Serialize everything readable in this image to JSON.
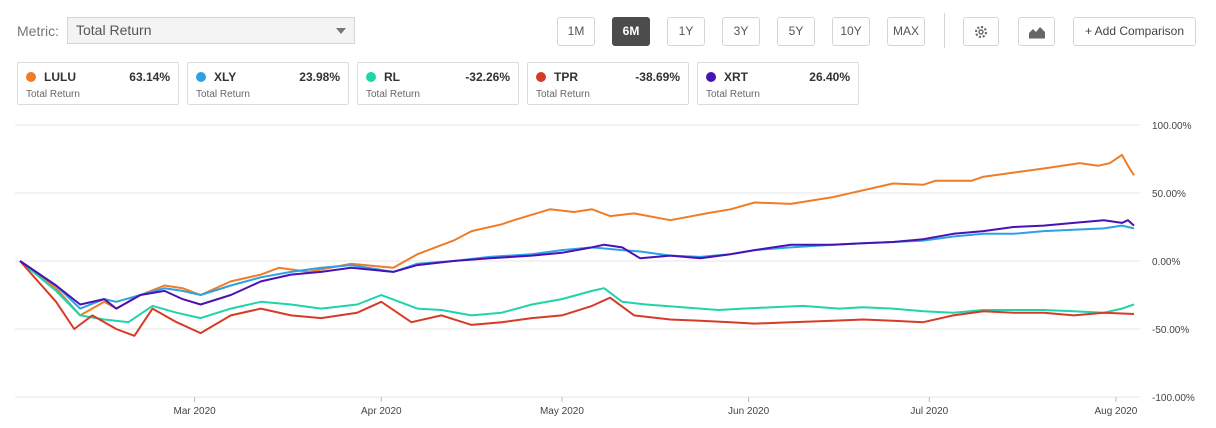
{
  "metric": {
    "label": "Metric:",
    "selected": "Total Return"
  },
  "ranges": [
    {
      "label": "1M",
      "active": false
    },
    {
      "label": "6M",
      "active": true
    },
    {
      "label": "1Y",
      "active": false
    },
    {
      "label": "3Y",
      "active": false
    },
    {
      "label": "5Y",
      "active": false
    },
    {
      "label": "10Y",
      "active": false
    },
    {
      "label": "MAX",
      "active": false
    }
  ],
  "toolbar": {
    "settings_icon": "gear-icon",
    "chart_type_icon": "area-chart-icon",
    "compare_label": "+ Add Comparison"
  },
  "legend": [
    {
      "ticker": "LULU",
      "value": "63.14%",
      "sub": "Total Return",
      "color": "#f07c26"
    },
    {
      "ticker": "XLY",
      "value": "23.98%",
      "sub": "Total Return",
      "color": "#2ea1e5"
    },
    {
      "ticker": "RL",
      "value": "-32.26%",
      "sub": "Total Return",
      "color": "#1fd4a8"
    },
    {
      "ticker": "TPR",
      "value": "-38.69%",
      "sub": "Total Return",
      "color": "#d63b26"
    },
    {
      "ticker": "XRT",
      "value": "26.40%",
      "sub": "Total Return",
      "color": "#4a12b5"
    }
  ],
  "chart_data": {
    "type": "line",
    "y_ticks": [
      "100.00%",
      "50.00%",
      "0.00%",
      "-50.00%",
      "-100.00%"
    ],
    "y_tick_values": [
      100,
      50,
      0,
      -50,
      -100
    ],
    "ylim": [
      -100,
      100
    ],
    "x_ticks": [
      "Mar 2020",
      "Apr 2020",
      "May 2020",
      "Jun 2020",
      "Jul 2020",
      "Aug 2020"
    ],
    "x_tick_positions": [
      29,
      60,
      90,
      121,
      151,
      182
    ],
    "xlim": [
      0,
      186
    ],
    "grid": true,
    "series": [
      {
        "name": "LULU",
        "color": "#f07c26",
        "x": [
          0,
          6,
          10,
          14,
          16,
          20,
          24,
          27,
          30,
          35,
          40,
          43,
          48,
          55,
          62,
          66,
          72,
          75,
          80,
          82,
          88,
          92,
          95,
          98,
          102,
          108,
          114,
          118,
          122,
          128,
          135,
          140,
          145,
          150,
          152,
          158,
          160,
          165,
          170,
          176,
          179,
          181,
          183,
          184,
          185
        ],
        "y": [
          0,
          -20,
          -40,
          -30,
          -35,
          -25,
          -18,
          -20,
          -25,
          -15,
          -10,
          -5,
          -8,
          -2,
          -5,
          5,
          15,
          22,
          27,
          30,
          38,
          36,
          38,
          33,
          35,
          30,
          35,
          38,
          43,
          42,
          47,
          52,
          57,
          56,
          59,
          59,
          62,
          65,
          68,
          72,
          70,
          72,
          78,
          70,
          63
        ]
      },
      {
        "name": "XLY",
        "color": "#2ea1e5",
        "x": [
          0,
          6,
          10,
          14,
          16,
          20,
          24,
          27,
          30,
          35,
          40,
          45,
          50,
          55,
          62,
          66,
          72,
          78,
          85,
          90,
          95,
          100,
          103,
          108,
          113,
          118,
          122,
          128,
          135,
          140,
          145,
          150,
          155,
          160,
          165,
          170,
          175,
          180,
          183,
          185
        ],
        "y": [
          0,
          -18,
          -35,
          -28,
          -30,
          -25,
          -20,
          -22,
          -25,
          -18,
          -12,
          -8,
          -5,
          -3,
          -8,
          -2,
          0,
          3,
          5,
          8,
          10,
          8,
          7,
          4,
          3,
          5,
          8,
          10,
          12,
          13,
          14,
          15,
          18,
          20,
          20,
          22,
          23,
          24,
          26,
          24
        ]
      },
      {
        "name": "RL",
        "color": "#1fd4a8",
        "x": [
          0,
          6,
          10,
          14,
          18,
          22,
          26,
          30,
          35,
          40,
          45,
          50,
          56,
          60,
          66,
          70,
          75,
          80,
          85,
          90,
          95,
          97,
          100,
          104,
          110,
          116,
          120,
          125,
          130,
          136,
          140,
          145,
          150,
          155,
          160,
          165,
          170,
          175,
          180,
          183,
          185
        ],
        "y": [
          0,
          -22,
          -40,
          -43,
          -45,
          -33,
          -38,
          -42,
          -35,
          -30,
          -32,
          -35,
          -32,
          -25,
          -35,
          -36,
          -40,
          -38,
          -32,
          -28,
          -22,
          -20,
          -30,
          -32,
          -34,
          -36,
          -35,
          -34,
          -33,
          -35,
          -34,
          -35,
          -37,
          -38,
          -36,
          -36,
          -36,
          -37,
          -38,
          -35,
          -32
        ]
      },
      {
        "name": "TPR",
        "color": "#d63b26",
        "x": [
          0,
          6,
          9,
          12,
          16,
          19,
          22,
          26,
          30,
          35,
          40,
          45,
          50,
          56,
          60,
          65,
          70,
          75,
          80,
          85,
          90,
          95,
          98,
          102,
          108,
          113,
          118,
          122,
          128,
          135,
          140,
          145,
          150,
          155,
          160,
          165,
          170,
          175,
          180,
          185
        ],
        "y": [
          0,
          -30,
          -50,
          -40,
          -50,
          -55,
          -35,
          -45,
          -53,
          -40,
          -35,
          -40,
          -42,
          -38,
          -30,
          -45,
          -40,
          -47,
          -45,
          -42,
          -40,
          -33,
          -27,
          -40,
          -43,
          -44,
          -45,
          -46,
          -45,
          -44,
          -43,
          -44,
          -45,
          -40,
          -37,
          -38,
          -38,
          -40,
          -38,
          -39
        ]
      },
      {
        "name": "XRT",
        "color": "#4a12b5",
        "x": [
          0,
          6,
          10,
          14,
          16,
          20,
          24,
          27,
          30,
          35,
          40,
          45,
          50,
          55,
          62,
          66,
          72,
          78,
          85,
          90,
          95,
          97,
          100,
          103,
          108,
          113,
          118,
          122,
          128,
          135,
          140,
          145,
          150,
          155,
          160,
          165,
          170,
          175,
          180,
          183,
          184,
          185
        ],
        "y": [
          0,
          -18,
          -32,
          -28,
          -35,
          -25,
          -22,
          -28,
          -32,
          -25,
          -15,
          -10,
          -8,
          -5,
          -8,
          -3,
          0,
          2,
          4,
          6,
          10,
          12,
          10,
          2,
          4,
          2,
          5,
          8,
          12,
          12,
          13,
          14,
          16,
          20,
          22,
          25,
          26,
          28,
          30,
          28,
          30,
          26
        ]
      }
    ]
  }
}
